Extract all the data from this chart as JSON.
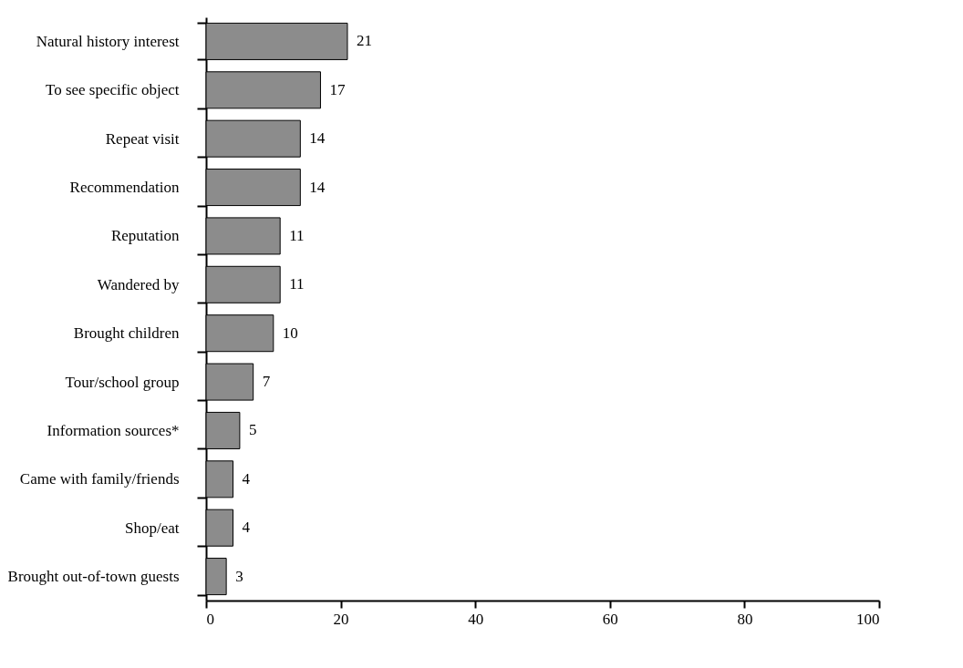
{
  "chart_data": {
    "type": "bar",
    "orientation": "horizontal",
    "categories": [
      "Natural history interest",
      "To see specific object",
      "Repeat visit",
      "Recommendation",
      "Reputation",
      "Wandered by",
      "Brought children",
      "Tour/school group",
      "Information sources*",
      "Came with family/friends",
      "Shop/eat",
      "Brought out-of-town guests"
    ],
    "values": [
      21,
      17,
      14,
      14,
      11,
      11,
      10,
      7,
      5,
      4,
      4,
      3
    ],
    "color": "#8c8c8c",
    "xlim": [
      0,
      100
    ],
    "xticks": [
      0,
      20,
      40,
      60,
      80,
      100
    ],
    "data_labels": true
  }
}
